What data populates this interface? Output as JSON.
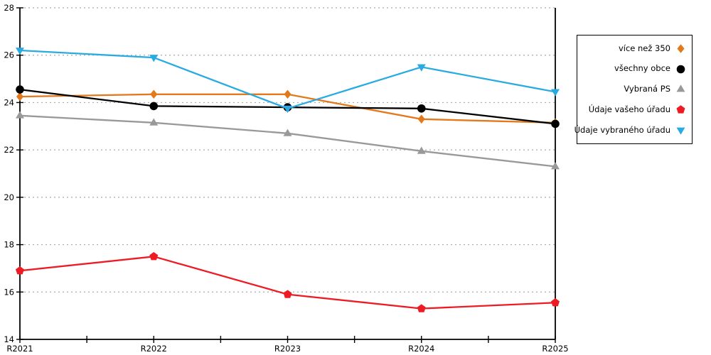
{
  "chart_data": {
    "type": "line",
    "title": "",
    "xlabel": "",
    "ylabel": "",
    "x_categories": [
      "R2021",
      "R2022",
      "R2023",
      "R2024",
      "R2025"
    ],
    "ylim": [
      14,
      28
    ],
    "yticks": [
      14,
      16,
      18,
      20,
      22,
      24,
      26,
      28
    ],
    "grid": "horizontal-dotted",
    "legend_position": "right-outside",
    "colors": {
      "axis": "#000000",
      "grid": "#aaaaaa",
      "background": "#ffffff"
    },
    "series": [
      {
        "name": "více než 350",
        "marker": "diamond",
        "color": "#e2791c",
        "values": [
          24.25,
          24.35,
          24.35,
          23.3,
          23.15
        ]
      },
      {
        "name": "všechny obce",
        "marker": "circle",
        "color": "#000000",
        "values": [
          24.55,
          23.85,
          23.8,
          23.75,
          23.1
        ]
      },
      {
        "name": "Vybraná PS",
        "marker": "triangle-up",
        "color": "#999999",
        "values": [
          23.45,
          23.15,
          22.7,
          21.95,
          21.3
        ]
      },
      {
        "name": "Údaje vašeho úřadu",
        "marker": "pentagon",
        "color": "#ed1c24",
        "values": [
          16.9,
          17.5,
          15.9,
          15.3,
          15.55
        ]
      },
      {
        "name": "Údaje vybraného úřadu",
        "marker": "triangle-down",
        "color": "#29abe2",
        "values": [
          26.2,
          25.9,
          23.75,
          25.5,
          24.45
        ]
      }
    ]
  }
}
